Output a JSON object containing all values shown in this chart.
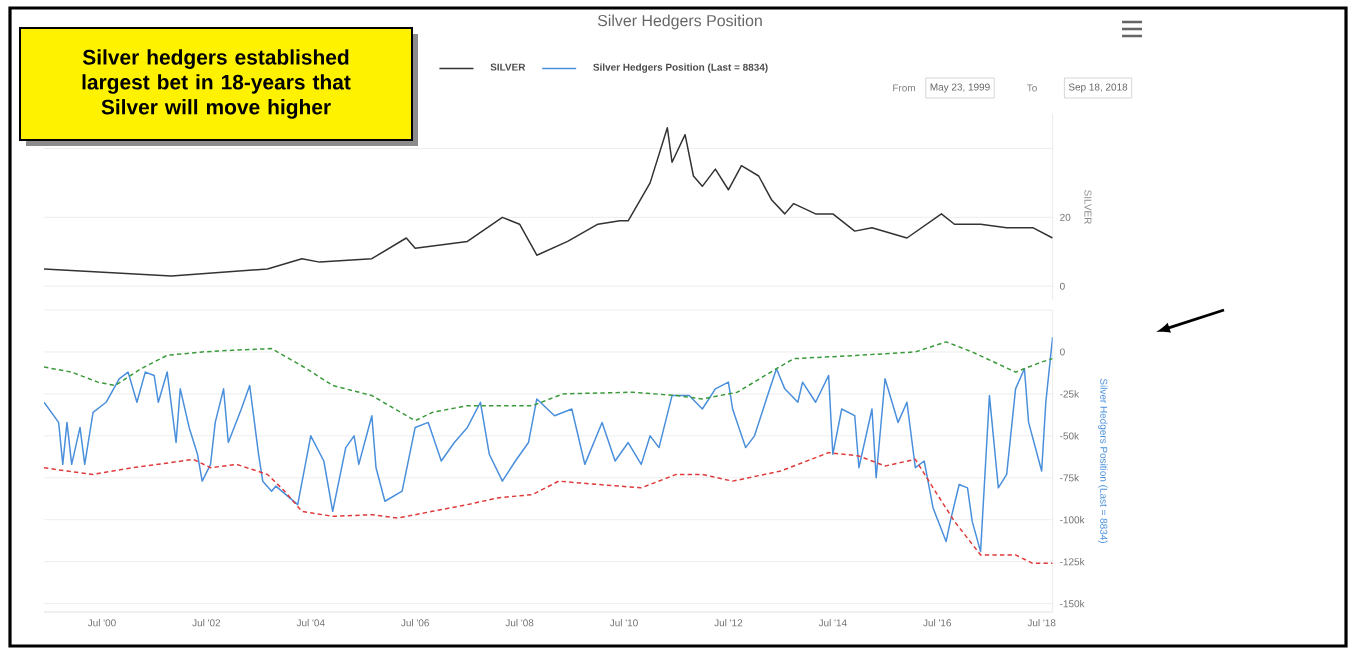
{
  "chart_data": [
    {
      "type": "line",
      "title": "Silver Hedgers Position",
      "ylabel": "SILVER",
      "annotations": [
        "Silver hedgers established largest bet in 18-years that Silver will move higher",
        "From",
        "May 23, 1999",
        "To",
        "Sep 18, 2018"
      ],
      "xlim": [
        "1999-05-23",
        "2018-09-18"
      ],
      "ylim": [
        -4,
        50
      ],
      "yticks": [
        0,
        20,
        {
          "value": 40,
          "label": null
        }
      ],
      "tick_labels": "y",
      "grid": "y",
      "legend": "top",
      "series": [
        {
          "name": "SILVER",
          "color": "#333333",
          "x": [
            "1999-05-23",
            "2001-11",
            "2003-09",
            "2004-05",
            "2004-09",
            "2005-09",
            "2006-05",
            "2006-07",
            "2007-07",
            "2008-03",
            "2008-07",
            "2008-11",
            "2009-06",
            "2010-01",
            "2010-06",
            "2010-08",
            "2011-01",
            "2011-05",
            "2011-06",
            "2011-09",
            "2011-11",
            "2012-01",
            "2012-04",
            "2012-07",
            "2012-10",
            "2013-02",
            "2013-05",
            "2013-08",
            "2013-10",
            "2014-03",
            "2014-07",
            "2014-12",
            "2015-04",
            "2015-12",
            "2016-08",
            "2016-11",
            "2017-05",
            "2017-11",
            "2018-05",
            "2018-09-18"
          ],
          "values": [
            5,
            3,
            5,
            8,
            7,
            8,
            14,
            11,
            13,
            20,
            18,
            9,
            13,
            18,
            19,
            19,
            30,
            46,
            36,
            44,
            32,
            29,
            34,
            28,
            35,
            32,
            25,
            21,
            24,
            21,
            21,
            16,
            17,
            14,
            21,
            18,
            18,
            17,
            17,
            14
          ]
        }
      ]
    },
    {
      "type": "line",
      "ylabel": "Silver Hedgers Position (Last = 8834)",
      "xlim": [
        "1999-05-23",
        "2018-09-18"
      ],
      "xticks": [
        {
          "value": "2000-07",
          "label": "Jul '00"
        },
        {
          "value": "2002-07",
          "label": "Jul '02"
        },
        {
          "value": "2004-07",
          "label": "Jul '04"
        },
        {
          "value": "2006-07",
          "label": "Jul '06"
        },
        {
          "value": "2008-07",
          "label": "Jul '08"
        },
        {
          "value": "2010-07",
          "label": "Jul '10"
        },
        {
          "value": "2012-07",
          "label": "Jul '12"
        },
        {
          "value": "2014-07",
          "label": "Jul '14"
        },
        {
          "value": "2016-07",
          "label": "Jul '16"
        },
        {
          "value": "2018-07",
          "label": "Jul '18"
        }
      ],
      "ylim": [
        -155000,
        25000
      ],
      "yticks": [
        {
          "value": -150000,
          "label": "-150k"
        },
        {
          "value": -125000,
          "label": "-125k"
        },
        {
          "value": -100000,
          "label": "-100k"
        },
        {
          "value": -75000,
          "label": "-75k"
        },
        {
          "value": -50000,
          "label": "-50k"
        },
        {
          "value": -25000,
          "label": "-25k"
        },
        0,
        {
          "value": 25000,
          "label": null
        }
      ],
      "grid": "y",
      "legend": "top",
      "series": [
        {
          "name": "Silver Hedgers Position (Last = 8834)",
          "color": "#4a8fdc",
          "x": [
            "1999-05-23",
            "1999-09",
            "1999-10",
            "1999-11",
            "1999-12",
            "2000-02",
            "2000-03",
            "2000-05",
            "2000-08",
            "2000-11",
            "2001-01",
            "2001-03",
            "2001-05",
            "2001-07",
            "2001-08",
            "2001-10",
            "2001-12",
            "2002-01",
            "2002-03",
            "2002-05",
            "2002-06",
            "2002-08",
            "2002-09",
            "2002-11",
            "2002-12",
            "2003-03",
            "2003-05",
            "2003-07",
            "2003-08",
            "2003-10",
            "2003-11",
            "2004-04",
            "2004-07",
            "2004-10",
            "2004-12",
            "2005-03",
            "2005-05",
            "2005-06",
            "2005-09",
            "2005-10",
            "2005-12",
            "2006-04",
            "2006-07",
            "2006-10",
            "2007-01",
            "2007-04",
            "2007-07",
            "2007-10",
            "2007-12",
            "2008-03",
            "2008-06",
            "2008-09",
            "2008-11",
            "2009-03",
            "2009-07",
            "2009-10",
            "2010-02",
            "2010-05",
            "2010-08",
            "2010-11",
            "2011-01",
            "2011-03",
            "2011-06",
            "2011-10",
            "2012-01",
            "2012-04",
            "2012-07",
            "2012-08",
            "2012-11",
            "2013-01",
            "2013-04",
            "2013-06",
            "2013-08",
            "2013-11",
            "2013-12",
            "2014-03",
            "2014-06",
            "2014-07",
            "2014-09",
            "2014-12",
            "2015-01",
            "2015-04",
            "2015-05",
            "2015-07",
            "2015-10",
            "2015-12",
            "2016-02",
            "2016-04",
            "2016-06",
            "2016-09",
            "2016-10",
            "2016-12",
            "2017-02",
            "2017-03",
            "2017-05",
            "2017-07",
            "2017-09",
            "2017-11",
            "2018-01",
            "2018-03",
            "2018-04",
            "2018-07",
            "2018-08",
            "2018-09-18"
          ],
          "values": [
            -30000,
            -42000,
            -67000,
            -42000,
            -67000,
            -45000,
            -67000,
            -36000,
            -30000,
            -16000,
            -12000,
            -30000,
            -12000,
            -14000,
            -30000,
            -12000,
            -54000,
            -22000,
            -45000,
            -61000,
            -77000,
            -67000,
            -42000,
            -22000,
            -54000,
            -34000,
            -20000,
            -61000,
            -77000,
            -83000,
            -80000,
            -91000,
            -50000,
            -65000,
            -95000,
            -57000,
            -50000,
            -67000,
            -38000,
            -69000,
            -89000,
            -83000,
            -45000,
            -42000,
            -65000,
            -54000,
            -45000,
            -30000,
            -61000,
            -77000,
            -65000,
            -54000,
            -28000,
            -38000,
            -34000,
            -67000,
            -42000,
            -65000,
            -54000,
            -67000,
            -50000,
            -57000,
            -26000,
            -26000,
            -34000,
            -22000,
            -18000,
            -34000,
            -57000,
            -50000,
            -26000,
            -10000,
            -22000,
            -30000,
            -18000,
            -30000,
            -14000,
            -61000,
            -34000,
            -38000,
            -69000,
            -34000,
            -75000,
            -16000,
            -42000,
            -30000,
            -69000,
            -65000,
            -93000,
            -113000,
            -101000,
            -79000,
            -81000,
            -101000,
            -119000,
            -26000,
            -81000,
            -73000,
            -22000,
            -10000,
            -42000,
            -71000,
            -30000,
            8834
          ]
        },
        {
          "color": "#3a9a3a",
          "line_style": "dashed",
          "x": [
            "1999-05-23",
            "1999-12",
            "2000-06",
            "2000-10",
            "2001-04",
            "2001-10",
            "2002-06",
            "2003-01",
            "2003-10",
            "2004-06",
            "2004-12",
            "2005-09",
            "2006-07",
            "2006-11",
            "2007-07",
            "2008-10",
            "2009-05",
            "2010-09",
            "2011-07",
            "2012-01",
            "2012-09",
            "2013-06",
            "2013-10",
            "2015-01",
            "2016-02",
            "2016-09",
            "2017-03",
            "2018-01",
            "2018-07",
            "2018-09-18"
          ],
          "values": [
            -9000,
            -12000,
            -18000,
            -20000,
            -10000,
            -2000,
            0,
            1000,
            2000,
            -10000,
            -20000,
            -26000,
            -41000,
            -36000,
            -32000,
            -32000,
            -25000,
            -24000,
            -26000,
            -28000,
            -24000,
            -10000,
            -4000,
            -2000,
            0,
            6000,
            0,
            -12000,
            -6000,
            -4000
          ]
        },
        {
          "color": "#e03a3a",
          "line_style": "dashed",
          "x": [
            "1999-05-23",
            "1999-11",
            "2000-05",
            "2001-02",
            "2001-08",
            "2002-04",
            "2002-08",
            "2003-02",
            "2003-09",
            "2004-01",
            "2004-05",
            "2004-12",
            "2005-09",
            "2006-03",
            "2006-11",
            "2007-07",
            "2008-02",
            "2008-10",
            "2009-04",
            "2010-01",
            "2010-11",
            "2011-07",
            "2012-01",
            "2012-08",
            "2013-07",
            "2014-06",
            "2015-01",
            "2015-07",
            "2016-02",
            "2016-06",
            "2016-11",
            "2017-05",
            "2018-01",
            "2018-05",
            "2018-09-18"
          ],
          "values": [
            -69000,
            -71000,
            -73000,
            -69000,
            -67000,
            -64000,
            -69000,
            -67000,
            -73000,
            -83000,
            -95000,
            -98000,
            -97000,
            -99000,
            -95000,
            -91000,
            -87000,
            -85000,
            -77000,
            -79000,
            -81000,
            -73000,
            -73000,
            -77000,
            -71000,
            -60000,
            -62000,
            -68000,
            -64000,
            -81000,
            -101000,
            -121000,
            -121000,
            -126000,
            -126000
          ]
        }
      ]
    }
  ]
}
